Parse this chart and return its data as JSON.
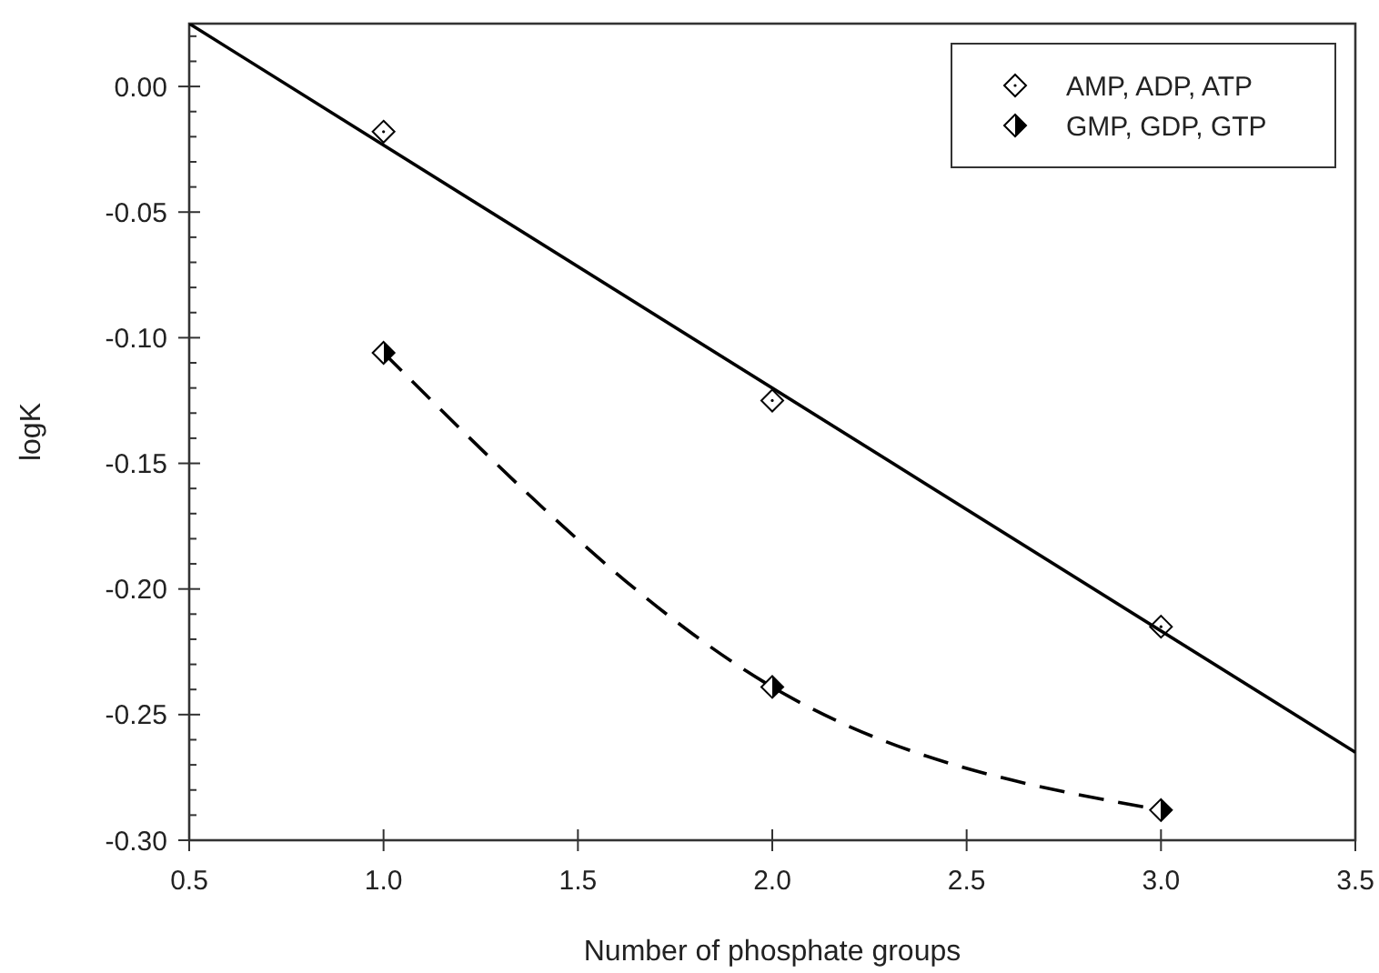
{
  "chart_data": {
    "type": "scatter",
    "xlabel": "Number of phosphate groups",
    "ylabel": "logK",
    "xlim": [
      0.5,
      3.5
    ],
    "xticks": [
      {
        "value": 0.5,
        "label": "0.5"
      },
      {
        "value": 1,
        "label": "1.0"
      },
      {
        "value": 1.5,
        "label": "1.5"
      },
      {
        "value": 2,
        "label": "2.0"
      },
      {
        "value": 2.5,
        "label": "2.5"
      },
      {
        "value": 3,
        "label": "3.0"
      },
      {
        "value": 3.5,
        "label": "3.5"
      }
    ],
    "ylim": [
      -0.3,
      0.025
    ],
    "yticks": [
      {
        "value": -0.3,
        "label": "-0.30"
      },
      {
        "value": -0.25,
        "label": "-0.25"
      },
      {
        "value": -0.2,
        "label": "-0.20"
      },
      {
        "value": -0.15,
        "label": "-0.15"
      },
      {
        "value": -0.1,
        "label": "-0.10"
      },
      {
        "value": -0.05,
        "label": "-0.05"
      },
      {
        "value": 0,
        "label": "0.00"
      }
    ],
    "grid": false,
    "legend": "top right",
    "marker": "diamond",
    "series": [
      {
        "name": "AMP, ADP, ATP",
        "color": "#000000",
        "x": [
          1,
          2,
          3
        ],
        "values": [
          -0.018,
          -0.125,
          -0.215
        ]
      },
      {
        "name": "GMP, GDP, GTP",
        "type": "line",
        "line_style": "dashed",
        "color": "#000000",
        "x": [
          1,
          2,
          3
        ],
        "values": [
          -0.106,
          -0.239,
          -0.288
        ]
      },
      {
        "type": "line",
        "line_style": "solid",
        "marker": "none",
        "color": "#000000",
        "x": [
          0.5,
          3.5
        ],
        "values": [
          0.025,
          -0.265
        ]
      }
    ]
  }
}
